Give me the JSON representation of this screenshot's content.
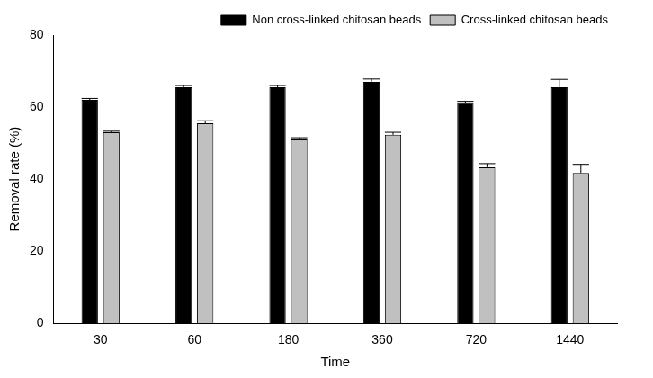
{
  "chart_data": {
    "type": "bar",
    "x_label": "Time",
    "y_label": "Removal rate (%)",
    "categories": [
      "30",
      "60",
      "180",
      "360",
      "720",
      "1440"
    ],
    "series": [
      {
        "name": "Non cross-linked chitosan beads",
        "color": "#000000",
        "values": [
          62,
          65.5,
          65.5,
          67,
          61.2,
          65.5
        ],
        "errors": [
          0.4,
          0.5,
          0.5,
          0.8,
          0.4,
          2.2
        ]
      },
      {
        "name": "Cross-linked chitosan beads",
        "color": "#c0c0c0",
        "values": [
          53,
          55.5,
          51,
          52.3,
          43.3,
          41.7
        ],
        "errors": [
          0.3,
          0.7,
          0.5,
          0.7,
          1.0,
          2.4
        ]
      }
    ],
    "ylim": [
      0,
      80
    ],
    "yticks": [
      0,
      20,
      40,
      60,
      80
    ],
    "grid": false,
    "legend": "upper right"
  }
}
